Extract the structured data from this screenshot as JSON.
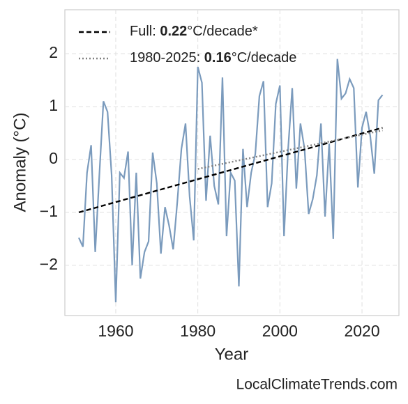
{
  "chart_data": {
    "type": "line",
    "x_label": "Year",
    "y_label": "Anomaly (°C)",
    "watermark": "LocalClimateTrends.com",
    "xlim": [
      1947.6,
      2029.0
    ],
    "ylim": [
      -2.95,
      2.83
    ],
    "xticks": [
      1960,
      1980,
      2000,
      2020
    ],
    "yticks": [
      {
        "value": -2,
        "label": "−2"
      },
      {
        "value": -1,
        "label": "−1"
      },
      0,
      1,
      2
    ],
    "grid": true,
    "legend": "upper left",
    "series": [
      {
        "name": "anomaly",
        "color": "#7b9bbd",
        "style": "solid",
        "x": [
          1951,
          1952,
          1953,
          1954,
          1955,
          1956,
          1957,
          1958,
          1959,
          1960,
          1961,
          1962,
          1963,
          1964,
          1965,
          1966,
          1967,
          1968,
          1969,
          1970,
          1971,
          1972,
          1973,
          1974,
          1975,
          1976,
          1977,
          1978,
          1979,
          1980,
          1981,
          1982,
          1983,
          1984,
          1985,
          1986,
          1987,
          1988,
          1989,
          1990,
          1991,
          1992,
          1993,
          1994,
          1995,
          1996,
          1997,
          1998,
          1999,
          2000,
          2001,
          2002,
          2003,
          2004,
          2005,
          2006,
          2007,
          2008,
          2009,
          2010,
          2011,
          2012,
          2013,
          2014,
          2015,
          2016,
          2017,
          2018,
          2019,
          2020,
          2021,
          2022,
          2023,
          2024,
          2025
        ],
        "values": [
          -1.48,
          -1.65,
          -0.25,
          0.27,
          -1.75,
          -0.3,
          1.1,
          0.9,
          -0.3,
          -2.7,
          -0.25,
          -0.35,
          0.15,
          -2.0,
          -0.25,
          -2.25,
          -1.75,
          -1.55,
          0.13,
          -0.45,
          -1.78,
          -0.9,
          -1.25,
          -1.7,
          -0.8,
          0.2,
          0.68,
          -0.7,
          -1.53,
          1.75,
          1.45,
          -0.78,
          0.45,
          -0.5,
          -0.85,
          1.55,
          -1.45,
          -0.25,
          -0.4,
          -2.4,
          0.2,
          -0.9,
          -0.25,
          0.1,
          1.2,
          1.48,
          -0.9,
          -0.45,
          1.05,
          1.4,
          -1.45,
          0.2,
          1.35,
          -0.55,
          0.68,
          0.2,
          -1.03,
          -0.75,
          -0.3,
          0.68,
          -1.08,
          0.3,
          -1.5,
          1.9,
          1.15,
          1.25,
          1.52,
          1.35,
          -0.53,
          0.6,
          0.9,
          0.45,
          -0.27,
          1.12,
          1.22
        ]
      },
      {
        "legend": {
          "prefix": "Full: ",
          "bold": "0.22",
          "suffix": "°C/decade*"
        },
        "color": "#000000",
        "style": "dashed",
        "x": [
          1951,
          2025
        ],
        "values": [
          -1.0,
          0.6
        ]
      },
      {
        "legend": {
          "prefix": "1980-2025: ",
          "bold": "0.16",
          "suffix": "°C/decade"
        },
        "color": "#808080",
        "style": "dotted",
        "x": [
          1980,
          2025
        ],
        "values": [
          -0.18,
          0.55
        ]
      }
    ]
  }
}
